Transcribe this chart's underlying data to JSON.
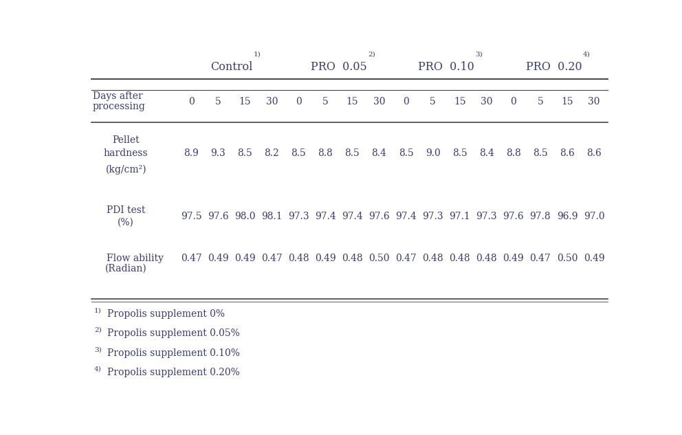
{
  "header_group_labels": [
    "Control",
    "PRO  0.05",
    "PRO  0.10",
    "PRO  0.20"
  ],
  "header_superscripts": [
    "1)",
    "2)",
    "3)",
    "4)"
  ],
  "days": [
    "0",
    "5",
    "15",
    "30",
    "0",
    "5",
    "15",
    "30",
    "0",
    "5",
    "15",
    "30",
    "0",
    "5",
    "15",
    "30"
  ],
  "row_label_lines": [
    [
      "Pellet",
      "hardness",
      "(kg/cm²)"
    ],
    [
      "PDI test",
      "(%)"
    ],
    [
      "Flow ability",
      "(Radian)"
    ]
  ],
  "data_formatted": [
    [
      "8.9",
      "9.3",
      "8.5",
      "8.2",
      "8.5",
      "8.8",
      "8.5",
      "8.4",
      "8.5",
      "9.0",
      "8.5",
      "8.4",
      "8.8",
      "8.5",
      "8.6",
      "8.6"
    ],
    [
      "97.5",
      "97.6",
      "98.0",
      "98.1",
      "97.3",
      "97.4",
      "97.4",
      "97.6",
      "97.4",
      "97.3",
      "97.1",
      "97.3",
      "97.6",
      "97.8",
      "96.9",
      "97.0"
    ],
    [
      "0.47",
      "0.49",
      "0.49",
      "0.47",
      "0.48",
      "0.49",
      "0.48",
      "0.50",
      "0.47",
      "0.48",
      "0.48",
      "0.48",
      "0.49",
      "0.47",
      "0.50",
      "0.49"
    ]
  ],
  "footnote_supers": [
    "1)",
    "2)",
    "3)",
    "4)"
  ],
  "footnote_texts": [
    "Propolis supplement 0%",
    "Propolis supplement 0.05%",
    "Propolis supplement 0.10%",
    "Propolis supplement 0.20%"
  ],
  "text_color": "#3a3a7a",
  "line_color": "#444444",
  "bg_color": "#ffffff",
  "font_size": 10.0,
  "header_font_size": 11.5,
  "super_font_size": 7.5
}
